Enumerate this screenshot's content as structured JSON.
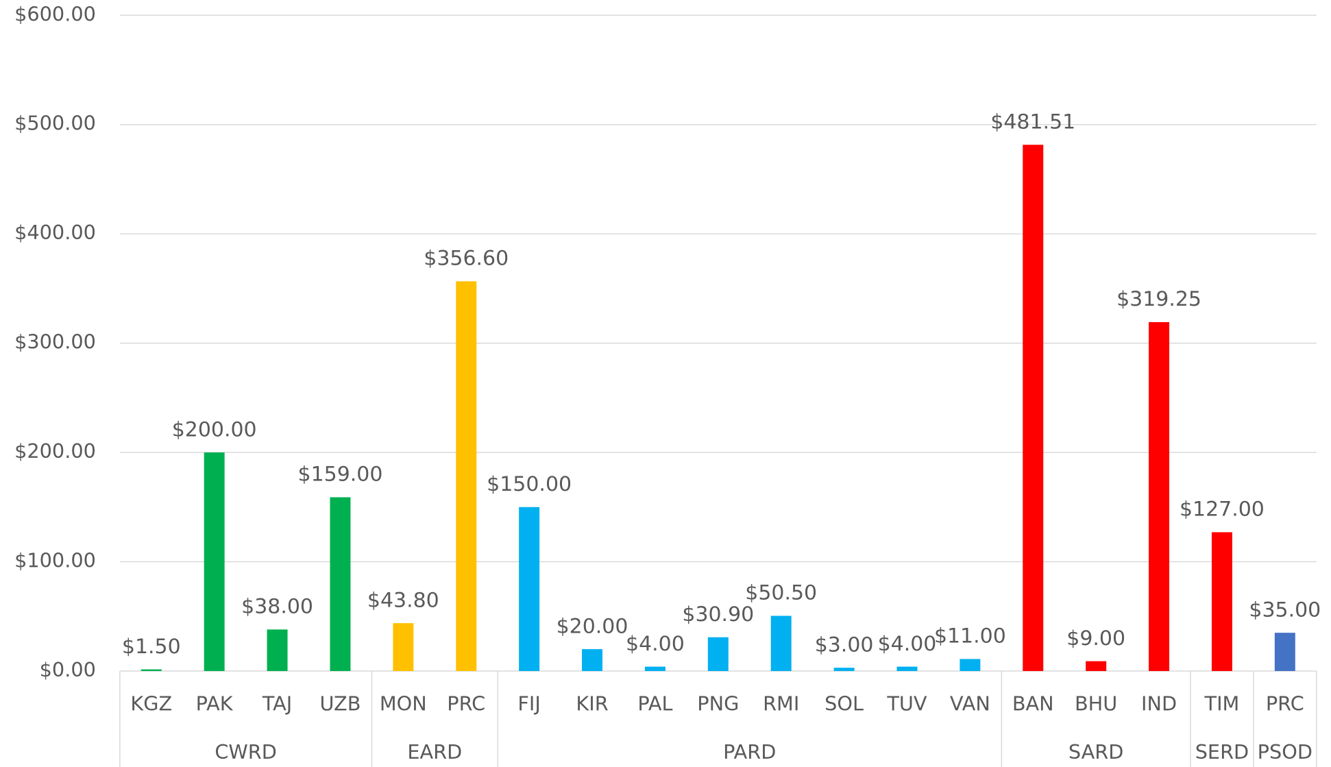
{
  "chart_data": {
    "type": "bar",
    "categories": [
      "KGZ",
      "PAK",
      "TAJ",
      "UZB",
      "MON",
      "PRC",
      "FIJ",
      "KIR",
      "PAL",
      "PNG",
      "RMI",
      "SOL",
      "TUV",
      "VAN",
      "BAN",
      "BHU",
      "IND",
      "TIM",
      "PRC"
    ],
    "groups": [
      "CWRD",
      "CWRD",
      "CWRD",
      "CWRD",
      "EARD",
      "EARD",
      "PARD",
      "PARD",
      "PARD",
      "PARD",
      "PARD",
      "PARD",
      "PARD",
      "PARD",
      "SARD",
      "SARD",
      "SARD",
      "SERD",
      "PSOD"
    ],
    "values": [
      1.5,
      200,
      38,
      159,
      43.8,
      356.6,
      150,
      20,
      4,
      30.9,
      50.5,
      3,
      4,
      11,
      481.51,
      9,
      319.25,
      127,
      35
    ],
    "value_labels": [
      "$1.50",
      "$200.00",
      "$38.00",
      "$159.00",
      "$43.80",
      "$356.60",
      "$150.00",
      "$20.00",
      "$4.00",
      "$30.90",
      "$50.50",
      "$3.00",
      "$4.00",
      "$11.00",
      "$481.51",
      "$9.00",
      "$319.25",
      "$127.00",
      "$35.00"
    ],
    "colors": [
      "#00b050",
      "#00b050",
      "#00b050",
      "#00b050",
      "#ffc000",
      "#ffc000",
      "#00b0f0",
      "#00b0f0",
      "#00b0f0",
      "#00b0f0",
      "#00b0f0",
      "#00b0f0",
      "#00b0f0",
      "#00b0f0",
      "#ff0000",
      "#ff0000",
      "#ff0000",
      "#ff0000",
      "#4472c4"
    ],
    "ylim": [
      0,
      600
    ],
    "yticks": [
      {
        "value": 0,
        "label": "$0.00"
      },
      {
        "value": 100,
        "label": "$100.00"
      },
      {
        "value": 200,
        "label": "$200.00"
      },
      {
        "value": 300,
        "label": "$300.00"
      },
      {
        "value": 400,
        "label": "$400.00"
      },
      {
        "value": 500,
        "label": "$500.00"
      },
      {
        "value": 600,
        "label": "$600.00"
      }
    ],
    "grid": true
  }
}
